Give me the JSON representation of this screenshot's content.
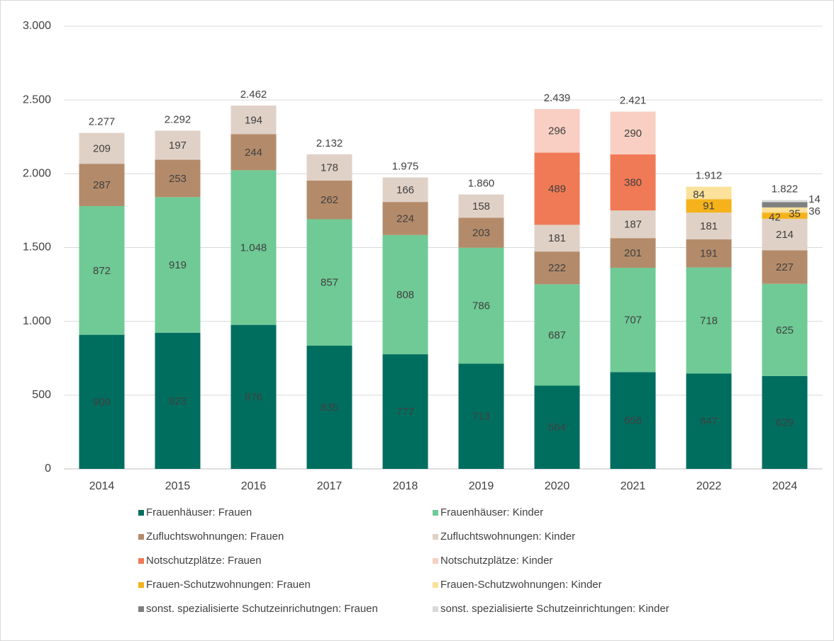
{
  "chart_data": {
    "type": "stacked_bar",
    "categories": [
      "2014",
      "2015",
      "2016",
      "2017",
      "2018",
      "2019",
      "2020",
      "2021",
      "2022",
      "2024"
    ],
    "series": [
      {
        "name": "Frauenhäuser: Frauen",
        "color": "#006e5f",
        "values": [
          909,
          923,
          976,
          835,
          777,
          713,
          564,
          656,
          647,
          629
        ]
      },
      {
        "name": "Frauenhäuser: Kinder",
        "color": "#6fca96",
        "values": [
          872,
          919,
          1048,
          857,
          808,
          786,
          687,
          707,
          718,
          625
        ],
        "value_labels": [
          "872",
          "919",
          "1.048",
          "857",
          "808",
          "786",
          "687",
          "707",
          "718",
          "625"
        ]
      },
      {
        "name": "Zufluchtswohnungen: Frauen",
        "color": "#b48b6a",
        "values": [
          287,
          253,
          244,
          262,
          224,
          203,
          222,
          201,
          191,
          227
        ]
      },
      {
        "name": "Zufluchtswohnungen: Kinder",
        "color": "#e0d1c6",
        "values": [
          209,
          197,
          194,
          178,
          166,
          158,
          181,
          187,
          181,
          214
        ]
      },
      {
        "name": "Notschutzplätze: Frauen",
        "color": "#f07a55",
        "values": [
          null,
          null,
          null,
          null,
          null,
          null,
          489,
          380,
          null,
          null
        ]
      },
      {
        "name": "Notschutzplätze: Kinder",
        "color": "#f8cfc2",
        "values": [
          null,
          null,
          null,
          null,
          null,
          null,
          296,
          290,
          null,
          null
        ]
      },
      {
        "name": "Frauen-Schutzwohnungen: Frauen",
        "color": "#f5b21a",
        "values": [
          null,
          null,
          null,
          null,
          null,
          null,
          null,
          null,
          91,
          42
        ]
      },
      {
        "name": "Frauen-Schutzwohnungen: Kinder",
        "color": "#fbe19a",
        "values": [
          null,
          null,
          null,
          null,
          null,
          null,
          null,
          null,
          84,
          35
        ]
      },
      {
        "name": "sonst. spezialisierte Schutzeinrichutngen: Frauen",
        "color": "#7f7f7f",
        "values": [
          null,
          null,
          null,
          null,
          null,
          null,
          null,
          null,
          null,
          36
        ]
      },
      {
        "name": "sonst. spezialisierte Schutzeinrichtungen: Kinder",
        "color": "#d9d9d9",
        "values": [
          null,
          null,
          null,
          null,
          null,
          null,
          null,
          null,
          null,
          14
        ]
      }
    ],
    "totals": {
      "values": [
        2277,
        2292,
        2462,
        2132,
        1975,
        1860,
        2439,
        2421,
        1912,
        1822
      ],
      "value_labels": [
        "2.277",
        "2.292",
        "2.462",
        "2.132",
        "1.975",
        "1.860",
        "2.439",
        "2.421",
        "1.912",
        "1.822"
      ]
    },
    "ylim": [
      0,
      3000
    ],
    "yticks": [
      0,
      500,
      {
        "value": 1000,
        "label": "1.000"
      },
      {
        "value": 1500,
        "label": "1.500"
      },
      {
        "value": 2000,
        "label": "2.000"
      },
      {
        "value": 2500,
        "label": "2.500"
      },
      {
        "value": 3000,
        "label": "3.000"
      }
    ],
    "grid": true,
    "legend": "bottom"
  }
}
